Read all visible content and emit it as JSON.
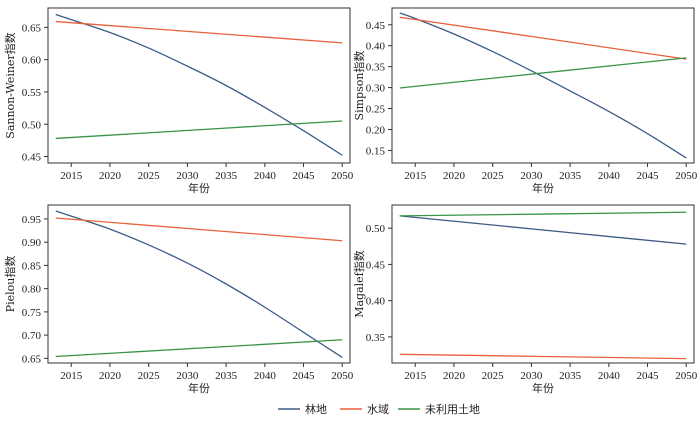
{
  "chart_data": [
    {
      "type": "line",
      "title": "",
      "xlabel": "年份",
      "ylabel": "Sannon-Weiner指数",
      "xlim": [
        2012,
        2051
      ],
      "ylim": [
        0.44,
        0.68
      ],
      "xticks": [
        2015,
        2020,
        2025,
        2030,
        2035,
        2040,
        2045,
        2050
      ],
      "yticks": [
        0.45,
        0.5,
        0.55,
        0.6,
        0.65
      ],
      "ytick_labels": [
        "0.45",
        "0.50",
        "0.55",
        "0.60",
        "0.65"
      ],
      "grid": false,
      "series": [
        {
          "name": "林地",
          "color": "#3b5a86",
          "x": [
            2013,
            2015,
            2020,
            2025,
            2030,
            2035,
            2040,
            2045,
            2050
          ],
          "y": [
            0.67,
            0.662,
            0.642,
            0.618,
            0.59,
            0.56,
            0.526,
            0.49,
            0.452
          ]
        },
        {
          "name": "水域",
          "color": "#e8613c",
          "x": [
            2013,
            2050
          ],
          "y": [
            0.659,
            0.626
          ]
        },
        {
          "name": "未利用土地",
          "color": "#3a9446",
          "x": [
            2013,
            2050
          ],
          "y": [
            0.478,
            0.505
          ]
        }
      ]
    },
    {
      "type": "line",
      "title": "",
      "xlabel": "年份",
      "ylabel": "Simpson指数",
      "xlim": [
        2012,
        2051
      ],
      "ylim": [
        0.12,
        0.49
      ],
      "xticks": [
        2015,
        2020,
        2025,
        2030,
        2035,
        2040,
        2045,
        2050
      ],
      "yticks": [
        0.15,
        0.2,
        0.25,
        0.3,
        0.35,
        0.4,
        0.45
      ],
      "ytick_labels": [
        "0.15",
        "0.20",
        "0.25",
        "0.30",
        "0.35",
        "0.40",
        "0.45"
      ],
      "grid": false,
      "series": [
        {
          "name": "林地",
          "color": "#3b5a86",
          "x": [
            2013,
            2015,
            2020,
            2025,
            2030,
            2035,
            2040,
            2045,
            2050
          ],
          "y": [
            0.478,
            0.465,
            0.428,
            0.386,
            0.34,
            0.292,
            0.243,
            0.19,
            0.132
          ]
        },
        {
          "name": "水域",
          "color": "#e8613c",
          "x": [
            2013,
            2050
          ],
          "y": [
            0.468,
            0.368
          ]
        },
        {
          "name": "未利用土地",
          "color": "#3a9446",
          "x": [
            2013,
            2050
          ],
          "y": [
            0.299,
            0.371
          ]
        }
      ]
    },
    {
      "type": "line",
      "title": "",
      "xlabel": "年份",
      "ylabel": "Pielou指数",
      "xlim": [
        2012,
        2051
      ],
      "ylim": [
        0.64,
        0.98
      ],
      "xticks": [
        2015,
        2020,
        2025,
        2030,
        2035,
        2040,
        2045,
        2050
      ],
      "yticks": [
        0.65,
        0.7,
        0.75,
        0.8,
        0.85,
        0.9,
        0.95
      ],
      "ytick_labels": [
        "0.65",
        "0.70",
        "0.75",
        "0.80",
        "0.85",
        "0.90",
        "0.95"
      ],
      "grid": false,
      "series": [
        {
          "name": "林地",
          "color": "#3b5a86",
          "x": [
            2013,
            2015,
            2020,
            2025,
            2030,
            2035,
            2040,
            2045,
            2050
          ],
          "y": [
            0.967,
            0.956,
            0.928,
            0.894,
            0.855,
            0.81,
            0.76,
            0.706,
            0.652
          ]
        },
        {
          "name": "水域",
          "color": "#e8613c",
          "x": [
            2013,
            2050
          ],
          "y": [
            0.952,
            0.903
          ]
        },
        {
          "name": "未利用土地",
          "color": "#3a9446",
          "x": [
            2013,
            2050
          ],
          "y": [
            0.654,
            0.69
          ]
        }
      ]
    },
    {
      "type": "line",
      "title": "",
      "xlabel": "年份",
      "ylabel": "Magalef指数",
      "xlim": [
        2012,
        2051
      ],
      "ylim": [
        0.314,
        0.532
      ],
      "xticks": [
        2015,
        2020,
        2025,
        2030,
        2035,
        2040,
        2045,
        2050
      ],
      "yticks": [
        0.35,
        0.4,
        0.45,
        0.5
      ],
      "ytick_labels": [
        "0.35",
        "0.40",
        "0.45",
        "0.50"
      ],
      "grid": false,
      "series": [
        {
          "name": "林地",
          "color": "#3b5a86",
          "x": [
            2013,
            2050
          ],
          "y": [
            0.517,
            0.478
          ]
        },
        {
          "name": "水域",
          "color": "#e8613c",
          "x": [
            2013,
            2050
          ],
          "y": [
            0.326,
            0.32
          ]
        },
        {
          "name": "未利用土地",
          "color": "#3a9446",
          "x": [
            2013,
            2050
          ],
          "y": [
            0.517,
            0.522
          ]
        }
      ]
    }
  ],
  "legend": {
    "position": "bottom-center",
    "items": [
      {
        "label": "林地",
        "color": "#3b5a86"
      },
      {
        "label": "水域",
        "color": "#e8613c"
      },
      {
        "label": "未利用土地",
        "color": "#3a9446"
      }
    ]
  }
}
